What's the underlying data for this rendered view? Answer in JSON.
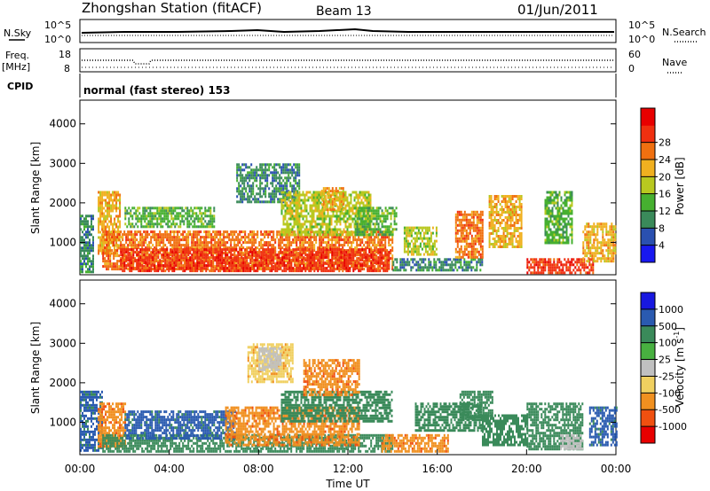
{
  "header": {
    "station": "Zhongshan Station (fitACF)",
    "beam": "Beam 13",
    "date": "01/Jun/2011"
  },
  "labels": {
    "nsky": "N.Sky",
    "nsearch": "N.Search",
    "freq": "Freq.",
    "mhz": "[MHz]",
    "nave": "Nave",
    "cpid": "CPID",
    "mode": "normal (fast stereo) 153",
    "log_ticks_left": [
      "10^5",
      "10^0"
    ],
    "log_ticks_right": [
      "10^5",
      "10^0"
    ],
    "freq_ticks": [
      "18",
      "8"
    ],
    "nave_ticks": [
      "60",
      "0"
    ]
  },
  "chart_data": [
    {
      "type": "heatmap",
      "name_label": "power-panel",
      "xlabel": "",
      "ylabel": "Slant Range [km]",
      "xlim": [
        0,
        24
      ],
      "ylim": [
        180,
        4600
      ],
      "y_ticks": [
        "1000",
        "2000",
        "3000",
        "4000"
      ],
      "x_ticks": [],
      "colorbar": {
        "label": "Power [dB]",
        "ticks": [
          "4",
          "8",
          "12",
          "16",
          "20",
          "24",
          "28"
        ],
        "colors": [
          "#1818f0",
          "#2a50b0",
          "#3a8a5a",
          "#46b030",
          "#b8c820",
          "#f0b020",
          "#f07010",
          "#f03010",
          "#e80000"
        ]
      },
      "regions": [
        {
          "t": [
            0.0,
            0.6
          ],
          "r": [
            250,
            1700
          ],
          "level": 8
        },
        {
          "t": [
            0.8,
            1.8
          ],
          "r": [
            700,
            2300
          ],
          "level": 20
        },
        {
          "t": [
            1.0,
            14.0
          ],
          "r": [
            300,
            1300
          ],
          "level": 24
        },
        {
          "t": [
            1.8,
            13.8
          ],
          "r": [
            300,
            850
          ],
          "level": 28
        },
        {
          "t": [
            2.0,
            6.0
          ],
          "r": [
            1400,
            1900
          ],
          "level": 12
        },
        {
          "t": [
            7.0,
            9.8
          ],
          "r": [
            2000,
            3000
          ],
          "level": 8
        },
        {
          "t": [
            9.0,
            13.0
          ],
          "r": [
            1200,
            2300
          ],
          "level": 16
        },
        {
          "t": [
            10.8,
            11.8
          ],
          "r": [
            1800,
            2400
          ],
          "level": 20
        },
        {
          "t": [
            12.3,
            14.2
          ],
          "r": [
            1200,
            1900
          ],
          "level": 12
        },
        {
          "t": [
            14.0,
            18.0
          ],
          "r": [
            300,
            600
          ],
          "level": 8
        },
        {
          "t": [
            14.5,
            16.0
          ],
          "r": [
            700,
            1400
          ],
          "level": 16
        },
        {
          "t": [
            16.8,
            18.0
          ],
          "r": [
            600,
            1800
          ],
          "level": 24
        },
        {
          "t": [
            18.3,
            19.8
          ],
          "r": [
            900,
            2200
          ],
          "level": 20
        },
        {
          "t": [
            20.8,
            22.0
          ],
          "r": [
            1000,
            2300
          ],
          "level": 12
        },
        {
          "t": [
            20.0,
            23.0
          ],
          "r": [
            250,
            600
          ],
          "level": 28
        },
        {
          "t": [
            22.5,
            24.0
          ],
          "r": [
            500,
            1500
          ],
          "level": 20
        }
      ]
    },
    {
      "type": "heatmap",
      "name_label": "velocity-panel",
      "xlabel": "Time UT",
      "ylabel": "Slant Range [km]",
      "xlim": [
        0,
        24
      ],
      "ylim": [
        180,
        4600
      ],
      "y_ticks": [
        "1000",
        "2000",
        "3000",
        "4000"
      ],
      "x_ticks": [
        "00:00",
        "04:00",
        "08:00",
        "12:00",
        "16:00",
        "20:00",
        "00:00"
      ],
      "colorbar": {
        "label": "Velocity [m s",
        "label_sup": "-1",
        "label_end": "]",
        "ticks": [
          "1000",
          "500",
          "100",
          "25",
          "-25",
          "-100",
          "-500",
          "-1000"
        ],
        "colors": [
          "#1818e0",
          "#2a5ab0",
          "#3a8a5a",
          "#48b040",
          "#c0c0c0",
          "#f0d060",
          "#f09020",
          "#f05010",
          "#e80000"
        ]
      },
      "regions": [
        {
          "t": [
            0.0,
            1.0
          ],
          "r": [
            300,
            1800
          ],
          "level": 800
        },
        {
          "t": [
            0.8,
            2.0
          ],
          "r": [
            400,
            1500
          ],
          "level": -300
        },
        {
          "t": [
            1.0,
            14.0
          ],
          "r": [
            250,
            700
          ],
          "level": 300
        },
        {
          "t": [
            2.0,
            7.0
          ],
          "r": [
            600,
            1300
          ],
          "level": 800
        },
        {
          "t": [
            6.5,
            12.5
          ],
          "r": [
            400,
            1400
          ],
          "level": -300
        },
        {
          "t": [
            7.5,
            9.5
          ],
          "r": [
            2000,
            3000
          ],
          "level": -60
        },
        {
          "t": [
            8.0,
            9.0
          ],
          "r": [
            2300,
            2900
          ],
          "level": 0
        },
        {
          "t": [
            9.0,
            14.0
          ],
          "r": [
            1000,
            1800
          ],
          "level": 300
        },
        {
          "t": [
            10.0,
            12.5
          ],
          "r": [
            1700,
            2600
          ],
          "level": -300
        },
        {
          "t": [
            13.5,
            16.5
          ],
          "r": [
            250,
            700
          ],
          "level": -300
        },
        {
          "t": [
            15.0,
            18.0
          ],
          "r": [
            800,
            1500
          ],
          "level": 300
        },
        {
          "t": [
            17.0,
            18.5
          ],
          "r": [
            1100,
            1800
          ],
          "level": 300
        },
        {
          "t": [
            18.0,
            20.0
          ],
          "r": [
            400,
            1200
          ],
          "level": 300
        },
        {
          "t": [
            20.0,
            22.5
          ],
          "r": [
            300,
            1500
          ],
          "level": 300
        },
        {
          "t": [
            21.5,
            22.5
          ],
          "r": [
            300,
            700
          ],
          "level": 0
        },
        {
          "t": [
            22.8,
            24.0
          ],
          "r": [
            400,
            1400
          ],
          "level": 800
        }
      ]
    }
  ]
}
